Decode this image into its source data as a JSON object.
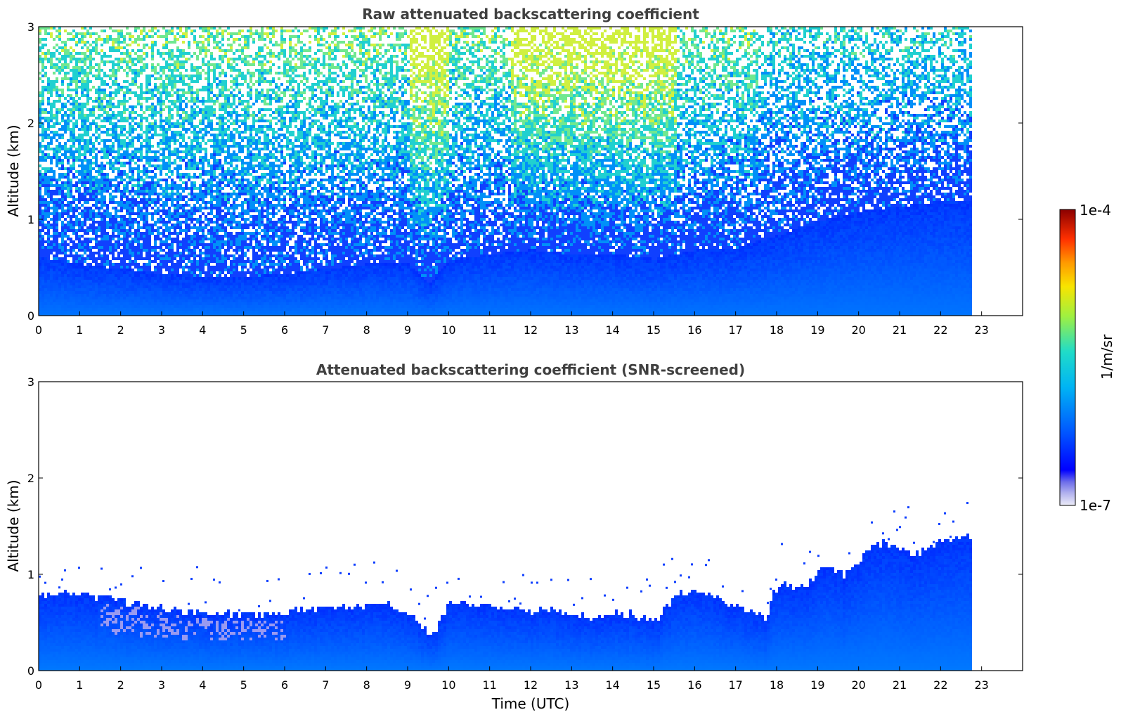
{
  "chart_data": [
    {
      "type": "heatmap",
      "title": "Raw attenuated backscattering coefficient",
      "xlabel": "",
      "ylabel": "Altitude (km)",
      "xlim": [
        0,
        24
      ],
      "ylim": [
        0,
        3
      ],
      "x_ticks": [
        "0",
        "1",
        "2",
        "3",
        "4",
        "5",
        "6",
        "7",
        "8",
        "9",
        "10",
        "11",
        "12",
        "13",
        "14",
        "15",
        "16",
        "17",
        "18",
        "19",
        "20",
        "21",
        "22",
        "23"
      ],
      "y_ticks": [
        "0",
        "1",
        "2",
        "3"
      ],
      "data_end_time": 22.7,
      "grid": false,
      "surface_layer_top_km": [
        [
          0,
          0.62
        ],
        [
          1,
          0.55
        ],
        [
          2,
          0.5
        ],
        [
          3,
          0.45
        ],
        [
          4,
          0.42
        ],
        [
          5,
          0.42
        ],
        [
          6,
          0.45
        ],
        [
          7,
          0.5
        ],
        [
          8,
          0.55
        ],
        [
          9,
          0.55
        ],
        [
          9.5,
          0.35
        ],
        [
          10,
          0.6
        ],
        [
          11,
          0.65
        ],
        [
          12,
          0.7
        ],
        [
          13,
          0.65
        ],
        [
          14,
          0.65
        ],
        [
          15,
          0.6
        ],
        [
          16,
          0.7
        ],
        [
          17,
          0.72
        ],
        [
          18,
          0.85
        ],
        [
          19,
          1.0
        ],
        [
          20,
          1.1
        ],
        [
          21,
          1.15
        ],
        [
          22,
          1.2
        ],
        [
          22.7,
          1.2
        ]
      ],
      "noise_level_profile": "increases with altitude; aerosol-free sky above ~1 km shows noisy signal (cyan/green), strongest near 9–10 h and 12–15 h"
    },
    {
      "type": "heatmap",
      "title": "Attenuated backscattering coefficient (SNR-screened)",
      "xlabel": "Time (UTC)",
      "ylabel": "Altitude (km)",
      "xlim": [
        0,
        24
      ],
      "ylim": [
        0,
        3
      ],
      "x_ticks": [
        "0",
        "1",
        "2",
        "3",
        "4",
        "5",
        "6",
        "7",
        "8",
        "9",
        "10",
        "11",
        "12",
        "13",
        "14",
        "15",
        "16",
        "17",
        "18",
        "19",
        "20",
        "21",
        "22",
        "23"
      ],
      "y_ticks": [
        "0",
        "1",
        "2",
        "3"
      ],
      "data_end_time": 22.7,
      "grid": false,
      "boundary_layer_top_km": [
        [
          0,
          0.8
        ],
        [
          0.5,
          0.82
        ],
        [
          1,
          0.8
        ],
        [
          1.5,
          0.78
        ],
        [
          2,
          0.74
        ],
        [
          2.5,
          0.7
        ],
        [
          3,
          0.66
        ],
        [
          3.5,
          0.64
        ],
        [
          4,
          0.62
        ],
        [
          4.5,
          0.6
        ],
        [
          5,
          0.6
        ],
        [
          5.5,
          0.6
        ],
        [
          6,
          0.63
        ],
        [
          6.5,
          0.65
        ],
        [
          7,
          0.66
        ],
        [
          7.5,
          0.68
        ],
        [
          8,
          0.68
        ],
        [
          8.5,
          0.7
        ],
        [
          9,
          0.62
        ],
        [
          9.3,
          0.45
        ],
        [
          9.6,
          0.42
        ],
        [
          9.9,
          0.62
        ],
        [
          10,
          0.75
        ],
        [
          10.5,
          0.7
        ],
        [
          11,
          0.68
        ],
        [
          11.5,
          0.66
        ],
        [
          12,
          0.62
        ],
        [
          12.5,
          0.66
        ],
        [
          13,
          0.6
        ],
        [
          13.5,
          0.58
        ],
        [
          14,
          0.62
        ],
        [
          14.5,
          0.6
        ],
        [
          15,
          0.52
        ],
        [
          15.3,
          0.7
        ],
        [
          15.6,
          0.82
        ],
        [
          16,
          0.85
        ],
        [
          16.5,
          0.75
        ],
        [
          17,
          0.7
        ],
        [
          17.5,
          0.6
        ],
        [
          17.7,
          0.55
        ],
        [
          17.9,
          0.85
        ],
        [
          18.2,
          0.9
        ],
        [
          18.5,
          0.85
        ],
        [
          18.8,
          0.95
        ],
        [
          19,
          1.05
        ],
        [
          19.3,
          1.1
        ],
        [
          19.6,
          1.0
        ],
        [
          20,
          1.15
        ],
        [
          20.3,
          1.3
        ],
        [
          20.6,
          1.35
        ],
        [
          21,
          1.3
        ],
        [
          21.3,
          1.2
        ],
        [
          21.6,
          1.3
        ],
        [
          22,
          1.35
        ],
        [
          22.4,
          1.4
        ],
        [
          22.7,
          1.4
        ]
      ]
    }
  ],
  "colorbar": {
    "label": "1/m/sr",
    "max_label": "1e-4",
    "min_label": "1e-7",
    "scale": "log",
    "range": [
      1e-07,
      0.0001
    ],
    "colormap_stops": [
      "#e8e8f8",
      "#c8c8f0",
      "#8c8ce8",
      "#0000ff",
      "#0060ff",
      "#00c0f0",
      "#40e0a0",
      "#a0f040",
      "#f8e000",
      "#ff8000",
      "#ff2000",
      "#8b0000"
    ]
  }
}
